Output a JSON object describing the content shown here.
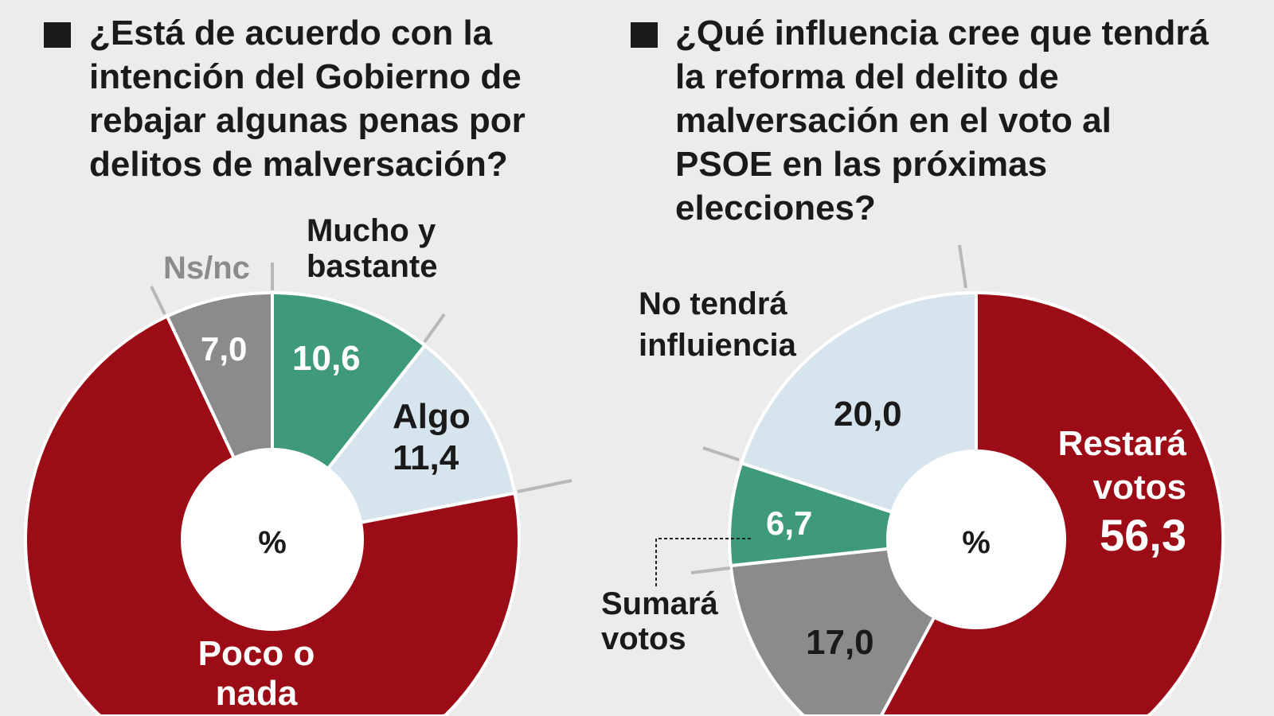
{
  "chart_data": [
    {
      "type": "pie",
      "title": "¿Está de acuerdo con la intención del Gobierno de rebajar algunas penas por delitos de malversación?",
      "center_label": "%",
      "slices": [
        {
          "label": "Mucho y bastante",
          "value": 10.6,
          "value_label": "10,6",
          "color": "#3f9a7b"
        },
        {
          "label": "Algo",
          "value": 11.4,
          "value_label": "11,4",
          "color": "#d6e4ee"
        },
        {
          "label": "Poco o nada",
          "value": 71.0,
          "color": "#9b0c16"
        },
        {
          "label": "Ns/nc",
          "value": 7.0,
          "value_label": "7,0",
          "color": "#8a8b8d"
        }
      ]
    },
    {
      "type": "pie",
      "title": "¿Qué influencia cree que tendrá la reforma del delito de malversación en el voto al PSOE en las próximas elecciones?",
      "center_label": "%",
      "slices": [
        {
          "label": "Restará votos",
          "value": 56.3,
          "value_label": "56,3",
          "color": "#9b0c16"
        },
        {
          "label": "",
          "value": 17.0,
          "value_label": "17,0",
          "color": "#8a8b8d"
        },
        {
          "label": "Sumará votos",
          "value": 6.7,
          "value_label": "6,7",
          "color": "#3f9a7b"
        },
        {
          "label": "No tendrá influiencia",
          "value": 20.0,
          "value_label": "20,0",
          "color": "#d6e4ee"
        }
      ]
    }
  ]
}
